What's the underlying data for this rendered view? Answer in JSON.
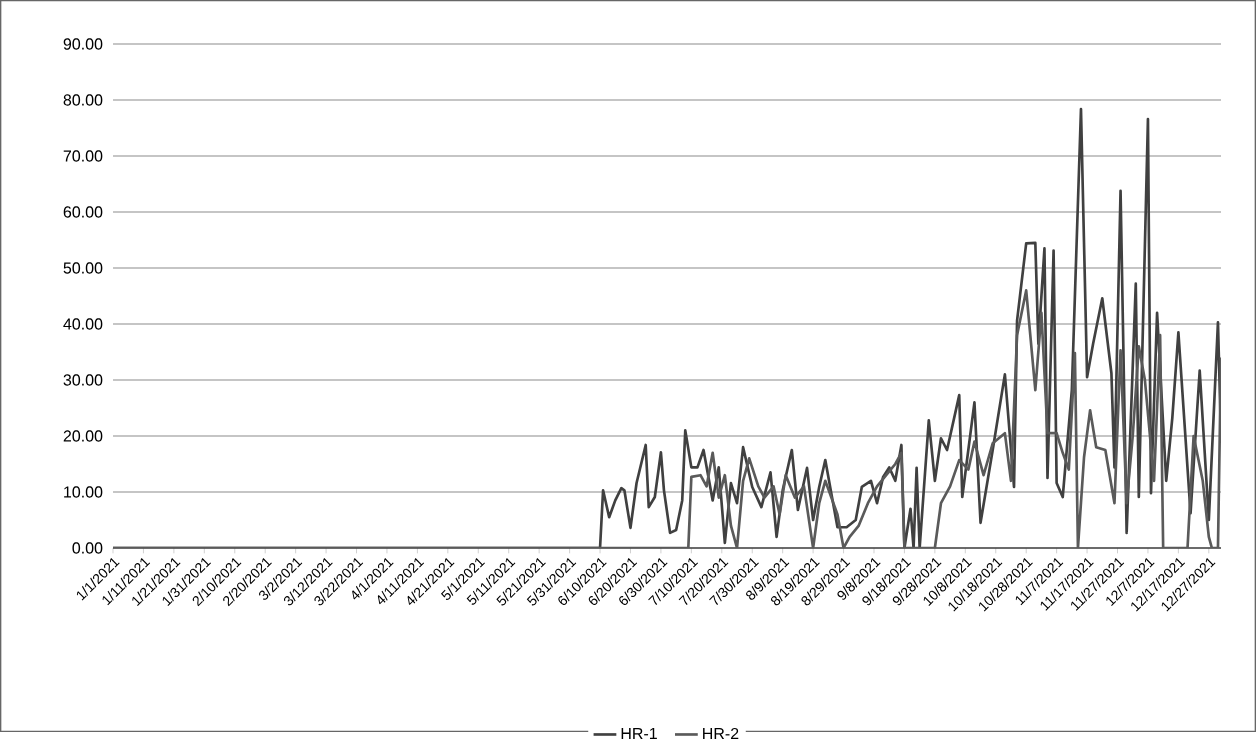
{
  "chart_data": {
    "type": "line",
    "xlim": [
      "2021-01-01",
      "2021-12-31"
    ],
    "xticks": [
      {
        "value": "2021-01-01",
        "label": "1/1/2021"
      },
      {
        "value": "2021-01-11",
        "label": "1/11/2021"
      },
      {
        "value": "2021-01-21",
        "label": "1/21/2021"
      },
      {
        "value": "2021-01-31",
        "label": "1/31/2021"
      },
      {
        "value": "2021-02-10",
        "label": "2/10/2021"
      },
      {
        "value": "2021-02-20",
        "label": "2/20/2021"
      },
      {
        "value": "2021-03-02",
        "label": "3/2/2021"
      },
      {
        "value": "2021-03-12",
        "label": "3/12/2021"
      },
      {
        "value": "2021-03-22",
        "label": "3/22/2021"
      },
      {
        "value": "2021-04-01",
        "label": "4/1/2021"
      },
      {
        "value": "2021-04-11",
        "label": "4/11/2021"
      },
      {
        "value": "2021-04-21",
        "label": "4/21/2021"
      },
      {
        "value": "2021-05-01",
        "label": "5/1/2021"
      },
      {
        "value": "2021-05-11",
        "label": "5/11/2021"
      },
      {
        "value": "2021-05-21",
        "label": "5/21/2021"
      },
      {
        "value": "2021-05-31",
        "label": "5/31/2021"
      },
      {
        "value": "2021-06-10",
        "label": "6/10/2021"
      },
      {
        "value": "2021-06-20",
        "label": "6/20/2021"
      },
      {
        "value": "2021-06-30",
        "label": "6/30/2021"
      },
      {
        "value": "2021-07-10",
        "label": "7/10/2021"
      },
      {
        "value": "2021-07-20",
        "label": "7/20/2021"
      },
      {
        "value": "2021-07-30",
        "label": "7/30/2021"
      },
      {
        "value": "2021-08-09",
        "label": "8/9/2021"
      },
      {
        "value": "2021-08-19",
        "label": "8/19/2021"
      },
      {
        "value": "2021-08-29",
        "label": "8/29/2021"
      },
      {
        "value": "2021-09-08",
        "label": "9/8/2021"
      },
      {
        "value": "2021-09-18",
        "label": "9/18/2021"
      },
      {
        "value": "2021-09-28",
        "label": "9/28/2021"
      },
      {
        "value": "2021-10-08",
        "label": "10/8/2021"
      },
      {
        "value": "2021-10-18",
        "label": "10/18/2021"
      },
      {
        "value": "2021-10-28",
        "label": "10/28/2021"
      },
      {
        "value": "2021-11-07",
        "label": "11/7/2021"
      },
      {
        "value": "2021-11-17",
        "label": "11/17/2021"
      },
      {
        "value": "2021-11-27",
        "label": "11/27/2021"
      },
      {
        "value": "2021-12-07",
        "label": "12/7/2021"
      },
      {
        "value": "2021-12-17",
        "label": "12/17/2021"
      },
      {
        "value": "2021-12-27",
        "label": "12/27/2021"
      }
    ],
    "ylim": [
      0,
      90
    ],
    "yticks": [
      {
        "value": 0,
        "label": "0.00"
      },
      {
        "value": 10,
        "label": "10.00"
      },
      {
        "value": 20,
        "label": "20.00"
      },
      {
        "value": 30,
        "label": "30.00"
      },
      {
        "value": 40,
        "label": "40.00"
      },
      {
        "value": 50,
        "label": "50.00"
      },
      {
        "value": 60,
        "label": "60.00"
      },
      {
        "value": 70,
        "label": "70.00"
      },
      {
        "value": 80,
        "label": "80.00"
      },
      {
        "value": 90,
        "label": "90.00"
      }
    ],
    "grid": "y",
    "legend": "bottom",
    "marker": "none",
    "line_style": "solid",
    "series": [
      {
        "name": "HR-1",
        "color": "#404040",
        "x": [
          "2021-01-01",
          "2021-06-10",
          "2021-06-11",
          "2021-06-13",
          "2021-06-15",
          "2021-06-17",
          "2021-06-18",
          "2021-06-20",
          "2021-06-22",
          "2021-06-25",
          "2021-06-26",
          "2021-06-28",
          "2021-06-30",
          "2021-07-01",
          "2021-07-03",
          "2021-07-05",
          "2021-07-07",
          "2021-07-08",
          "2021-07-10",
          "2021-07-12",
          "2021-07-14",
          "2021-07-17",
          "2021-07-19",
          "2021-07-21",
          "2021-07-23",
          "2021-07-25",
          "2021-07-27",
          "2021-07-30",
          "2021-08-02",
          "2021-08-05",
          "2021-08-07",
          "2021-08-09",
          "2021-08-12",
          "2021-08-14",
          "2021-08-17",
          "2021-08-19",
          "2021-08-21",
          "2021-08-23",
          "2021-08-27",
          "2021-08-30",
          "2021-09-02",
          "2021-09-04",
          "2021-09-07",
          "2021-09-09",
          "2021-09-11",
          "2021-09-13",
          "2021-09-15",
          "2021-09-17",
          "2021-09-18",
          "2021-09-20",
          "2021-09-21",
          "2021-09-22",
          "2021-09-23",
          "2021-09-26",
          "2021-09-28",
          "2021-09-30",
          "2021-10-02",
          "2021-10-06",
          "2021-10-07",
          "2021-10-11",
          "2021-10-13",
          "2021-10-17",
          "2021-10-21",
          "2021-10-24",
          "2021-10-25",
          "2021-10-28",
          "2021-10-31",
          "2021-11-01",
          "2021-11-03",
          "2021-11-04",
          "2021-11-06",
          "2021-11-07",
          "2021-11-09",
          "2021-11-12",
          "2021-11-15",
          "2021-11-17",
          "2021-11-19",
          "2021-11-22",
          "2021-11-25",
          "2021-11-26",
          "2021-11-28",
          "2021-11-30",
          "2021-12-03",
          "2021-12-04",
          "2021-12-07",
          "2021-12-08",
          "2021-12-10",
          "2021-12-13",
          "2021-12-15",
          "2021-12-17",
          "2021-12-21",
          "2021-12-24",
          "2021-12-27",
          "2021-12-30",
          "2021-12-31"
        ],
        "values": [
          0,
          0,
          10.3,
          5.5,
          8.5,
          10.7,
          10.3,
          3.6,
          11.6,
          18.4,
          7.3,
          9.1,
          17.1,
          10.3,
          2.7,
          3.2,
          8.5,
          21.0,
          14.4,
          14.4,
          17.5,
          8.5,
          14.4,
          0.9,
          11.6,
          8,
          18,
          10.9,
          7.3,
          13.5,
          2,
          10.3,
          17.5,
          6.8,
          14.3,
          5,
          10.9,
          15.7,
          3.7,
          3.7,
          5,
          10.9,
          12,
          8,
          12.7,
          14.4,
          12,
          18.4,
          0,
          7,
          0,
          14.3,
          0,
          22.8,
          12,
          19.6,
          17.5,
          27.3,
          9.1,
          26,
          4.5,
          17.5,
          31,
          10.9,
          40.6,
          54.4,
          54.5,
          36.5,
          53.5,
          12.5,
          53.1,
          11.6,
          9.1,
          28.2,
          78.4,
          30.5,
          36.5,
          44.6,
          31.2,
          14.4,
          63.8,
          2.7,
          47.2,
          9.1,
          76.6,
          9.8,
          42,
          12,
          23.2,
          38.5,
          6.2,
          31.7,
          5,
          40.3,
          19.8
        ]
      },
      {
        "name": "HR-2",
        "color": "#5a5a5a",
        "x": [
          "2021-01-01",
          "2021-07-09",
          "2021-07-10",
          "2021-07-13",
          "2021-07-15",
          "2021-07-17",
          "2021-07-19",
          "2021-07-21",
          "2021-07-23",
          "2021-07-25",
          "2021-07-27",
          "2021-07-29",
          "2021-08-01",
          "2021-08-03",
          "2021-08-06",
          "2021-08-08",
          "2021-08-10",
          "2021-08-13",
          "2021-08-16",
          "2021-08-19",
          "2021-08-21",
          "2021-08-23",
          "2021-08-25",
          "2021-08-27",
          "2021-08-29",
          "2021-08-31",
          "2021-09-03",
          "2021-09-06",
          "2021-09-09",
          "2021-09-12",
          "2021-09-15",
          "2021-09-17",
          "2021-09-18",
          "2021-09-28",
          "2021-09-30",
          "2021-10-03",
          "2021-10-06",
          "2021-10-09",
          "2021-10-11",
          "2021-10-14",
          "2021-10-17",
          "2021-10-21",
          "2021-10-23",
          "2021-10-25",
          "2021-10-28",
          "2021-10-31",
          "2021-11-02",
          "2021-11-04",
          "2021-11-07",
          "2021-11-09",
          "2021-11-11",
          "2021-11-13",
          "2021-11-14",
          "2021-11-16",
          "2021-11-18",
          "2021-11-20",
          "2021-11-23",
          "2021-11-26",
          "2021-11-28",
          "2021-11-30",
          "2021-12-02",
          "2021-12-04",
          "2021-12-06",
          "2021-12-09",
          "2021-12-11",
          "2021-12-12",
          "2021-12-20",
          "2021-12-22",
          "2021-12-25",
          "2021-12-27",
          "2021-12-28",
          "2021-12-30",
          "2021-12-31"
        ],
        "values": [
          0,
          0,
          12.7,
          13,
          11,
          17,
          9,
          13,
          4,
          0,
          12,
          16,
          11,
          9,
          11,
          6,
          13,
          9,
          11,
          0,
          8,
          12,
          9,
          6,
          0,
          2,
          4,
          8,
          11,
          13,
          15,
          17,
          0,
          0,
          8,
          11,
          15.7,
          14,
          19,
          13,
          18.7,
          20.5,
          12,
          38,
          46,
          28.2,
          42,
          20.5,
          20.5,
          17,
          14,
          34.8,
          0,
          16.2,
          24.6,
          18,
          17.5,
          8,
          35.3,
          8,
          20,
          36,
          30,
          12,
          38,
          0,
          0,
          20,
          12,
          2,
          0,
          0,
          34
        ]
      }
    ]
  }
}
